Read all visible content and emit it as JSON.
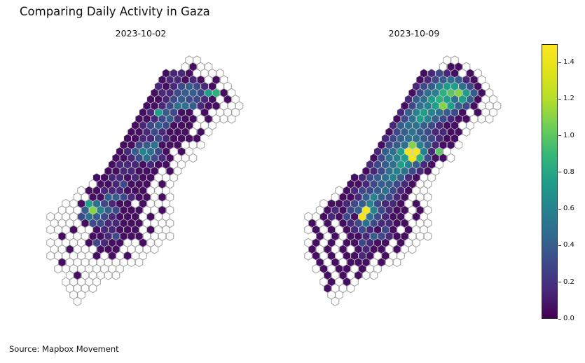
{
  "figure": {
    "title": "Comparing Daily Activity in Gaza",
    "source": "Source: Mapbox Movement",
    "background": "#ffffff"
  },
  "chart_data": {
    "type": "hexbin",
    "title": "Comparing Daily Activity in Gaza",
    "subtitle_left": "2023-10-02",
    "subtitle_right": "2023-10-09",
    "colormap": "viridis",
    "colormap_stops": [
      "#440154",
      "#482878",
      "#3e4989",
      "#31688e",
      "#26828e",
      "#1f9e89",
      "#35b779",
      "#6ece58",
      "#b5de2b",
      "#dfe318",
      "#fde725"
    ],
    "colorbar": {
      "vmin": 0.0,
      "vmax": 1.5,
      "ticks": [
        "0.0",
        "0.2",
        "0.4",
        "0.6",
        "0.8",
        "1.0",
        "1.2",
        "1.4"
      ]
    },
    "encoding": {
      "empty_char_is_no_data_white_hex": ".",
      "space_char_is_outside_region": " ",
      "value_levels": {
        "0": 0.05,
        "1": 0.15,
        "2": 0.3,
        "3": 0.4,
        "4": 0.5,
        "5": 0.6,
        "6": 0.75,
        "7": 0.85,
        "8": 1.0,
        "9": 1.1,
        "a": 1.2,
        "b": 1.3,
        "c": 1.45,
        "d": 1.5
      }
    },
    "panels": [
      {
        "label": "2023-10-02",
        "rows": [
          "                  ..",
          "                 .0..",
          "               0110....",
          "              011010.0.",
          "              10123210..",
          "             0112332670.",
          "             001232210.0.",
          "            0012443100...",
          "            0163200.0....",
          "           00123100.0...",
          "           01232000...",
          "          00121000.0.",
          "          0011210000",
          "         00234000...",
          "         0135420.0.",
          "        00124210...",
          "        01110100..",
          "       0011000.0.",
          "      00110100...",
          "     .0012000.0.",
          "    .00111000...",
          "   ..00332100.0.",
          "  ..0642100.0...",
          " ...39532000..0.",
          "....24321000.0..",
          "....02211000....",
          "...0..011000.0..",
          " 0...0012000....",
          ".....02100..0..",
          "..0...000.....",
          "......0.0.0..",
          " 0..........",
          " .........",
          "  .0.....",
          "  .....",
          "  ....",
          "   ..",
          "   ."
        ]
      },
      {
        "label": "2023-10-09",
        "rows": [
          "                  ..",
          "                 .00.",
          "               01210.0.",
          "              01234310.",
          "              123566420.",
          "             0245789630.",
          "             1346764630..",
          "            0245696320...",
          "            135654320.0..",
          "           0246532100...",
          "           134432100..",
          "          0234321100.",
          "          1234432100",
          "         0234953100.",
          "         1346cc518.",
          "        02456c7200.",
          "        123465310.",
          "       012454210.",
          "      012345310..",
          "     001233210..",
          "    .012234210..",
          "   .001353210...",
          "  .0012352110.0.",
          " .01023c52100.0.",
          "..01020c42100.0.",
          "0.0.012421100...",
          ".0.0.0121020.0..",
          " 0.0.00132100...",
          ".0.0.002100.0..",
          "0.0.0.0100.0..",
          ".0.0.0010.0..",
          " 0.0.000.0..",
          " .0.00.0..",
          "  0.0.0..",
          "  .0.0.",
          "  0...",
          "   ..",
          "   ."
        ]
      }
    ]
  }
}
